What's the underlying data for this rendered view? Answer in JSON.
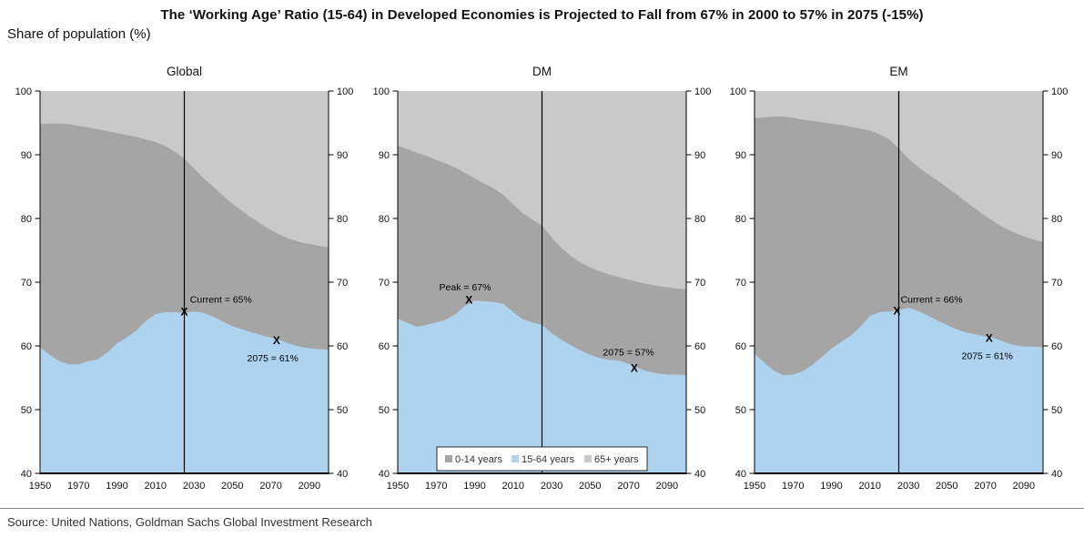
{
  "header": {
    "title": "The ‘Working Age’ Ratio (15-64) in Developed Economies is Projected to Fall from 67% in 2000 to 57% in 2075 (-15%)",
    "subtitle": "Share of population (%)"
  },
  "footer": {
    "source": "Source: United Nations, Goldman Sachs Global Investment Research"
  },
  "colors": {
    "age_0_14_band": "#a5a5a5",
    "age_15_64_band": "#aed3ee",
    "age_65_plus_band": "#c9c9c9",
    "axis": "#000000",
    "vline": "#000000",
    "text": "#111111"
  },
  "chart_data": {
    "type": "area",
    "stacked": true,
    "ylim": [
      40,
      100
    ],
    "yticks": [
      40,
      50,
      60,
      70,
      80,
      90,
      100
    ],
    "xticks": [
      1950,
      1970,
      1990,
      2010,
      2030,
      2050,
      2070,
      2090
    ],
    "x_range": [
      1950,
      2100
    ],
    "x_step": 5,
    "vline_x": 2025,
    "grid": false,
    "legend": {
      "panel": "DM",
      "position": "bottom-center",
      "entries": [
        {
          "label": "0-14 years",
          "color": "#a5a5a5"
        },
        {
          "label": "15-64 years",
          "color": "#aed3ee"
        },
        {
          "label": "65+ years",
          "color": "#c9c9c9"
        }
      ]
    },
    "panels": [
      {
        "title": "Global",
        "series": [
          {
            "name": "15-64 years share (top of blue band)",
            "values": [
              59.8,
              58.6,
              57.6,
              57.1,
              57.1,
              57.6,
              57.9,
              59.0,
              60.4,
              61.3,
              62.4,
              63.9,
              65.0,
              65.3,
              65.3,
              65.2,
              65.4,
              65.2,
              64.6,
              63.8,
              63.1,
              62.6,
              62.1,
              61.7,
              61.3,
              60.9,
              60.3,
              59.9,
              59.6,
              59.5,
              59.4
            ]
          },
          {
            "name": "share under 65 (top of dark band = 15-64 plus 0-14)",
            "values": [
              94.8,
              94.9,
              94.9,
              94.8,
              94.5,
              94.3,
              94.0,
              93.7,
              93.4,
              93.1,
              92.8,
              92.4,
              92.0,
              91.4,
              90.5,
              89.4,
              87.9,
              86.3,
              85.0,
              83.6,
              82.3,
              81.2,
              80.1,
              79.1,
              78.2,
              77.4,
              76.8,
              76.3,
              76.0,
              75.7,
              75.5
            ]
          }
        ],
        "annotations": [
          {
            "text": "Current = 65%",
            "text_x": 2028,
            "text_y": 67.3,
            "align": "start",
            "marker": "X",
            "marker_x": 2025,
            "marker_y": 65.4
          },
          {
            "text": "2075 = 61%",
            "text_x": 2071,
            "text_y": 58.1,
            "align": "middle",
            "marker": "X",
            "marker_x": 2073,
            "marker_y": 60.9
          }
        ]
      },
      {
        "title": "DM",
        "series": [
          {
            "name": "15-64 years share (top of blue band)",
            "values": [
              64.3,
              63.6,
              63.0,
              63.3,
              63.7,
              64.1,
              65.0,
              66.3,
              67.1,
              67.0,
              66.9,
              66.6,
              65.3,
              64.2,
              63.7,
              63.3,
              62.0,
              61.0,
              60.1,
              59.3,
              58.6,
              58.1,
              57.8,
              57.7,
              57.2,
              56.5,
              56.0,
              55.7,
              55.5,
              55.5,
              55.4
            ]
          },
          {
            "name": "share under 65 (top of dark band = 15-64 plus 0-14)",
            "values": [
              91.4,
              90.9,
              90.3,
              89.8,
              89.2,
              88.6,
              88.0,
              87.1,
              86.3,
              85.5,
              84.7,
              83.7,
              82.2,
              80.8,
              79.8,
              78.9,
              77.0,
              75.4,
              74.1,
              73.1,
              72.3,
              71.7,
              71.2,
              70.8,
              70.4,
              70.0,
              69.7,
              69.4,
              69.2,
              69.0,
              68.9
            ]
          }
        ],
        "annotations": [
          {
            "text": "Peak = 67%",
            "text_x": 1985,
            "text_y": 69.2,
            "align": "middle",
            "marker": "X",
            "marker_x": 1987,
            "marker_y": 67.3
          },
          {
            "text": "2075 = 57%",
            "text_x": 2070,
            "text_y": 59.0,
            "align": "middle",
            "marker": "X",
            "marker_x": 2073,
            "marker_y": 56.6
          }
        ]
      },
      {
        "title": "EM",
        "series": [
          {
            "name": "15-64 years share (top of blue band)",
            "values": [
              58.8,
              57.4,
              56.1,
              55.4,
              55.5,
              56.0,
              57.0,
              58.3,
              59.6,
              60.6,
              61.6,
              63.0,
              64.7,
              65.3,
              65.4,
              65.6,
              66.0,
              65.5,
              64.8,
              64.0,
              63.3,
              62.6,
              62.1,
              61.8,
              61.5,
              61.2,
              60.6,
              60.1,
              59.9,
              59.9,
              59.8
            ]
          },
          {
            "name": "share under 65 (top of dark band = 15-64 plus 0-14)",
            "values": [
              95.7,
              95.9,
              96.0,
              96.0,
              95.8,
              95.5,
              95.3,
              95.1,
              94.9,
              94.7,
              94.4,
              94.1,
              93.8,
              93.2,
              92.4,
              91.0,
              89.4,
              88.1,
              87.0,
              86.0,
              84.9,
              83.8,
              82.6,
              81.5,
              80.4,
              79.4,
              78.5,
              77.8,
              77.2,
              76.7,
              76.3
            ]
          }
        ],
        "annotations": [
          {
            "text": "Current = 66%",
            "text_x": 2026,
            "text_y": 67.3,
            "align": "start",
            "marker": "X",
            "marker_x": 2024,
            "marker_y": 65.6
          },
          {
            "text": "2075 = 61%",
            "text_x": 2071,
            "text_y": 58.4,
            "align": "middle",
            "marker": "X",
            "marker_x": 2072,
            "marker_y": 61.3
          }
        ]
      }
    ]
  }
}
